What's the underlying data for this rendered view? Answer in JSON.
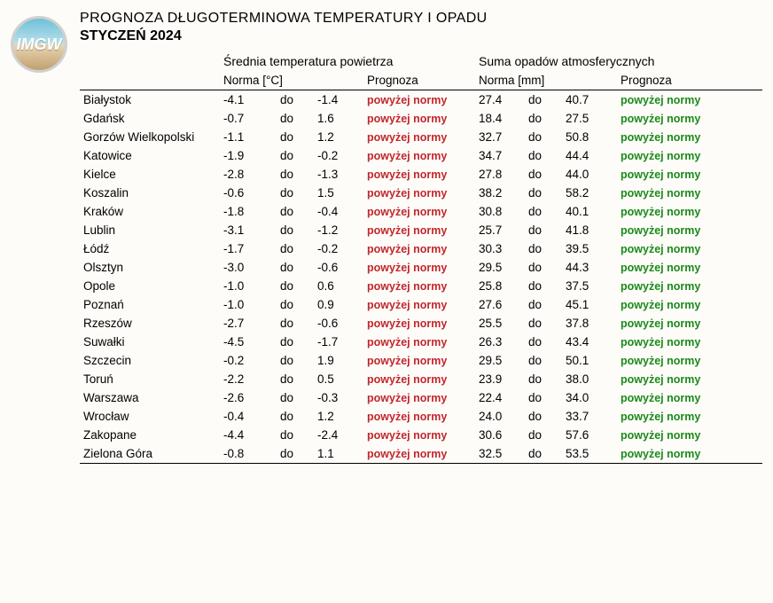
{
  "header": {
    "logo_text": "IMGW",
    "title_line1": "PROGNOZA DŁUGOTERMINOWA TEMPERATURY I OPADU",
    "title_line2": "STYCZEŃ 2024"
  },
  "groups": {
    "temp_title": "Średnia temperatura powietrza",
    "precip_title": "Suma opadów atmosferycznych",
    "norm_temp_label": "Norma [°C]",
    "norm_precip_label": "Norma [mm]",
    "prognoza_label": "Prognoza",
    "do_label": "do"
  },
  "styling": {
    "temp_prog_color": "#c1272d",
    "precip_prog_color": "#1a8a1a",
    "font_size_body": 13.5,
    "font_size_title": 16,
    "background_color": "#fdfcf8"
  },
  "rows": [
    {
      "city": "Białystok",
      "t_lo": "-4.1",
      "t_hi": "-1.4",
      "t_prog": "powyżej normy",
      "p_lo": "27.4",
      "p_hi": "40.7",
      "p_prog": "powyżej normy"
    },
    {
      "city": "Gdańsk",
      "t_lo": "-0.7",
      "t_hi": "1.6",
      "t_prog": "powyżej normy",
      "p_lo": "18.4",
      "p_hi": "27.5",
      "p_prog": "powyżej normy"
    },
    {
      "city": "Gorzów Wielkopolski",
      "t_lo": "-1.1",
      "t_hi": "1.2",
      "t_prog": "powyżej normy",
      "p_lo": "32.7",
      "p_hi": "50.8",
      "p_prog": "powyżej normy"
    },
    {
      "city": "Katowice",
      "t_lo": "-1.9",
      "t_hi": "-0.2",
      "t_prog": "powyżej normy",
      "p_lo": "34.7",
      "p_hi": "44.4",
      "p_prog": "powyżej normy"
    },
    {
      "city": "Kielce",
      "t_lo": "-2.8",
      "t_hi": "-1.3",
      "t_prog": "powyżej normy",
      "p_lo": "27.8",
      "p_hi": "44.0",
      "p_prog": "powyżej normy"
    },
    {
      "city": "Koszalin",
      "t_lo": "-0.6",
      "t_hi": "1.5",
      "t_prog": "powyżej normy",
      "p_lo": "38.2",
      "p_hi": "58.2",
      "p_prog": "powyżej normy"
    },
    {
      "city": "Kraków",
      "t_lo": "-1.8",
      "t_hi": "-0.4",
      "t_prog": "powyżej normy",
      "p_lo": "30.8",
      "p_hi": "40.1",
      "p_prog": "powyżej normy"
    },
    {
      "city": "Lublin",
      "t_lo": "-3.1",
      "t_hi": "-1.2",
      "t_prog": "powyżej normy",
      "p_lo": "25.7",
      "p_hi": "41.8",
      "p_prog": "powyżej normy"
    },
    {
      "city": "Łódź",
      "t_lo": "-1.7",
      "t_hi": "-0.2",
      "t_prog": "powyżej normy",
      "p_lo": "30.3",
      "p_hi": "39.5",
      "p_prog": "powyżej normy"
    },
    {
      "city": "Olsztyn",
      "t_lo": "-3.0",
      "t_hi": "-0.6",
      "t_prog": "powyżej normy",
      "p_lo": "29.5",
      "p_hi": "44.3",
      "p_prog": "powyżej normy"
    },
    {
      "city": "Opole",
      "t_lo": "-1.0",
      "t_hi": "0.6",
      "t_prog": "powyżej normy",
      "p_lo": "25.8",
      "p_hi": "37.5",
      "p_prog": "powyżej normy"
    },
    {
      "city": "Poznań",
      "t_lo": "-1.0",
      "t_hi": "0.9",
      "t_prog": "powyżej normy",
      "p_lo": "27.6",
      "p_hi": "45.1",
      "p_prog": "powyżej normy"
    },
    {
      "city": "Rzeszów",
      "t_lo": "-2.7",
      "t_hi": "-0.6",
      "t_prog": "powyżej normy",
      "p_lo": "25.5",
      "p_hi": "37.8",
      "p_prog": "powyżej normy"
    },
    {
      "city": "Suwałki",
      "t_lo": "-4.5",
      "t_hi": "-1.7",
      "t_prog": "powyżej normy",
      "p_lo": "26.3",
      "p_hi": "43.4",
      "p_prog": "powyżej normy"
    },
    {
      "city": "Szczecin",
      "t_lo": "-0.2",
      "t_hi": "1.9",
      "t_prog": "powyżej normy",
      "p_lo": "29.5",
      "p_hi": "50.1",
      "p_prog": "powyżej normy"
    },
    {
      "city": "Toruń",
      "t_lo": "-2.2",
      "t_hi": "0.5",
      "t_prog": "powyżej normy",
      "p_lo": "23.9",
      "p_hi": "38.0",
      "p_prog": "powyżej normy"
    },
    {
      "city": "Warszawa",
      "t_lo": "-2.6",
      "t_hi": "-0.3",
      "t_prog": "powyżej normy",
      "p_lo": "22.4",
      "p_hi": "34.0",
      "p_prog": "powyżej normy"
    },
    {
      "city": "Wrocław",
      "t_lo": "-0.4",
      "t_hi": "1.2",
      "t_prog": "powyżej normy",
      "p_lo": "24.0",
      "p_hi": "33.7",
      "p_prog": "powyżej normy"
    },
    {
      "city": "Zakopane",
      "t_lo": "-4.4",
      "t_hi": "-2.4",
      "t_prog": "powyżej normy",
      "p_lo": "30.6",
      "p_hi": "57.6",
      "p_prog": "powyżej normy"
    },
    {
      "city": "Zielona Góra",
      "t_lo": "-0.8",
      "t_hi": "1.1",
      "t_prog": "powyżej normy",
      "p_lo": "32.5",
      "p_hi": "53.5",
      "p_prog": "powyżej normy"
    }
  ]
}
